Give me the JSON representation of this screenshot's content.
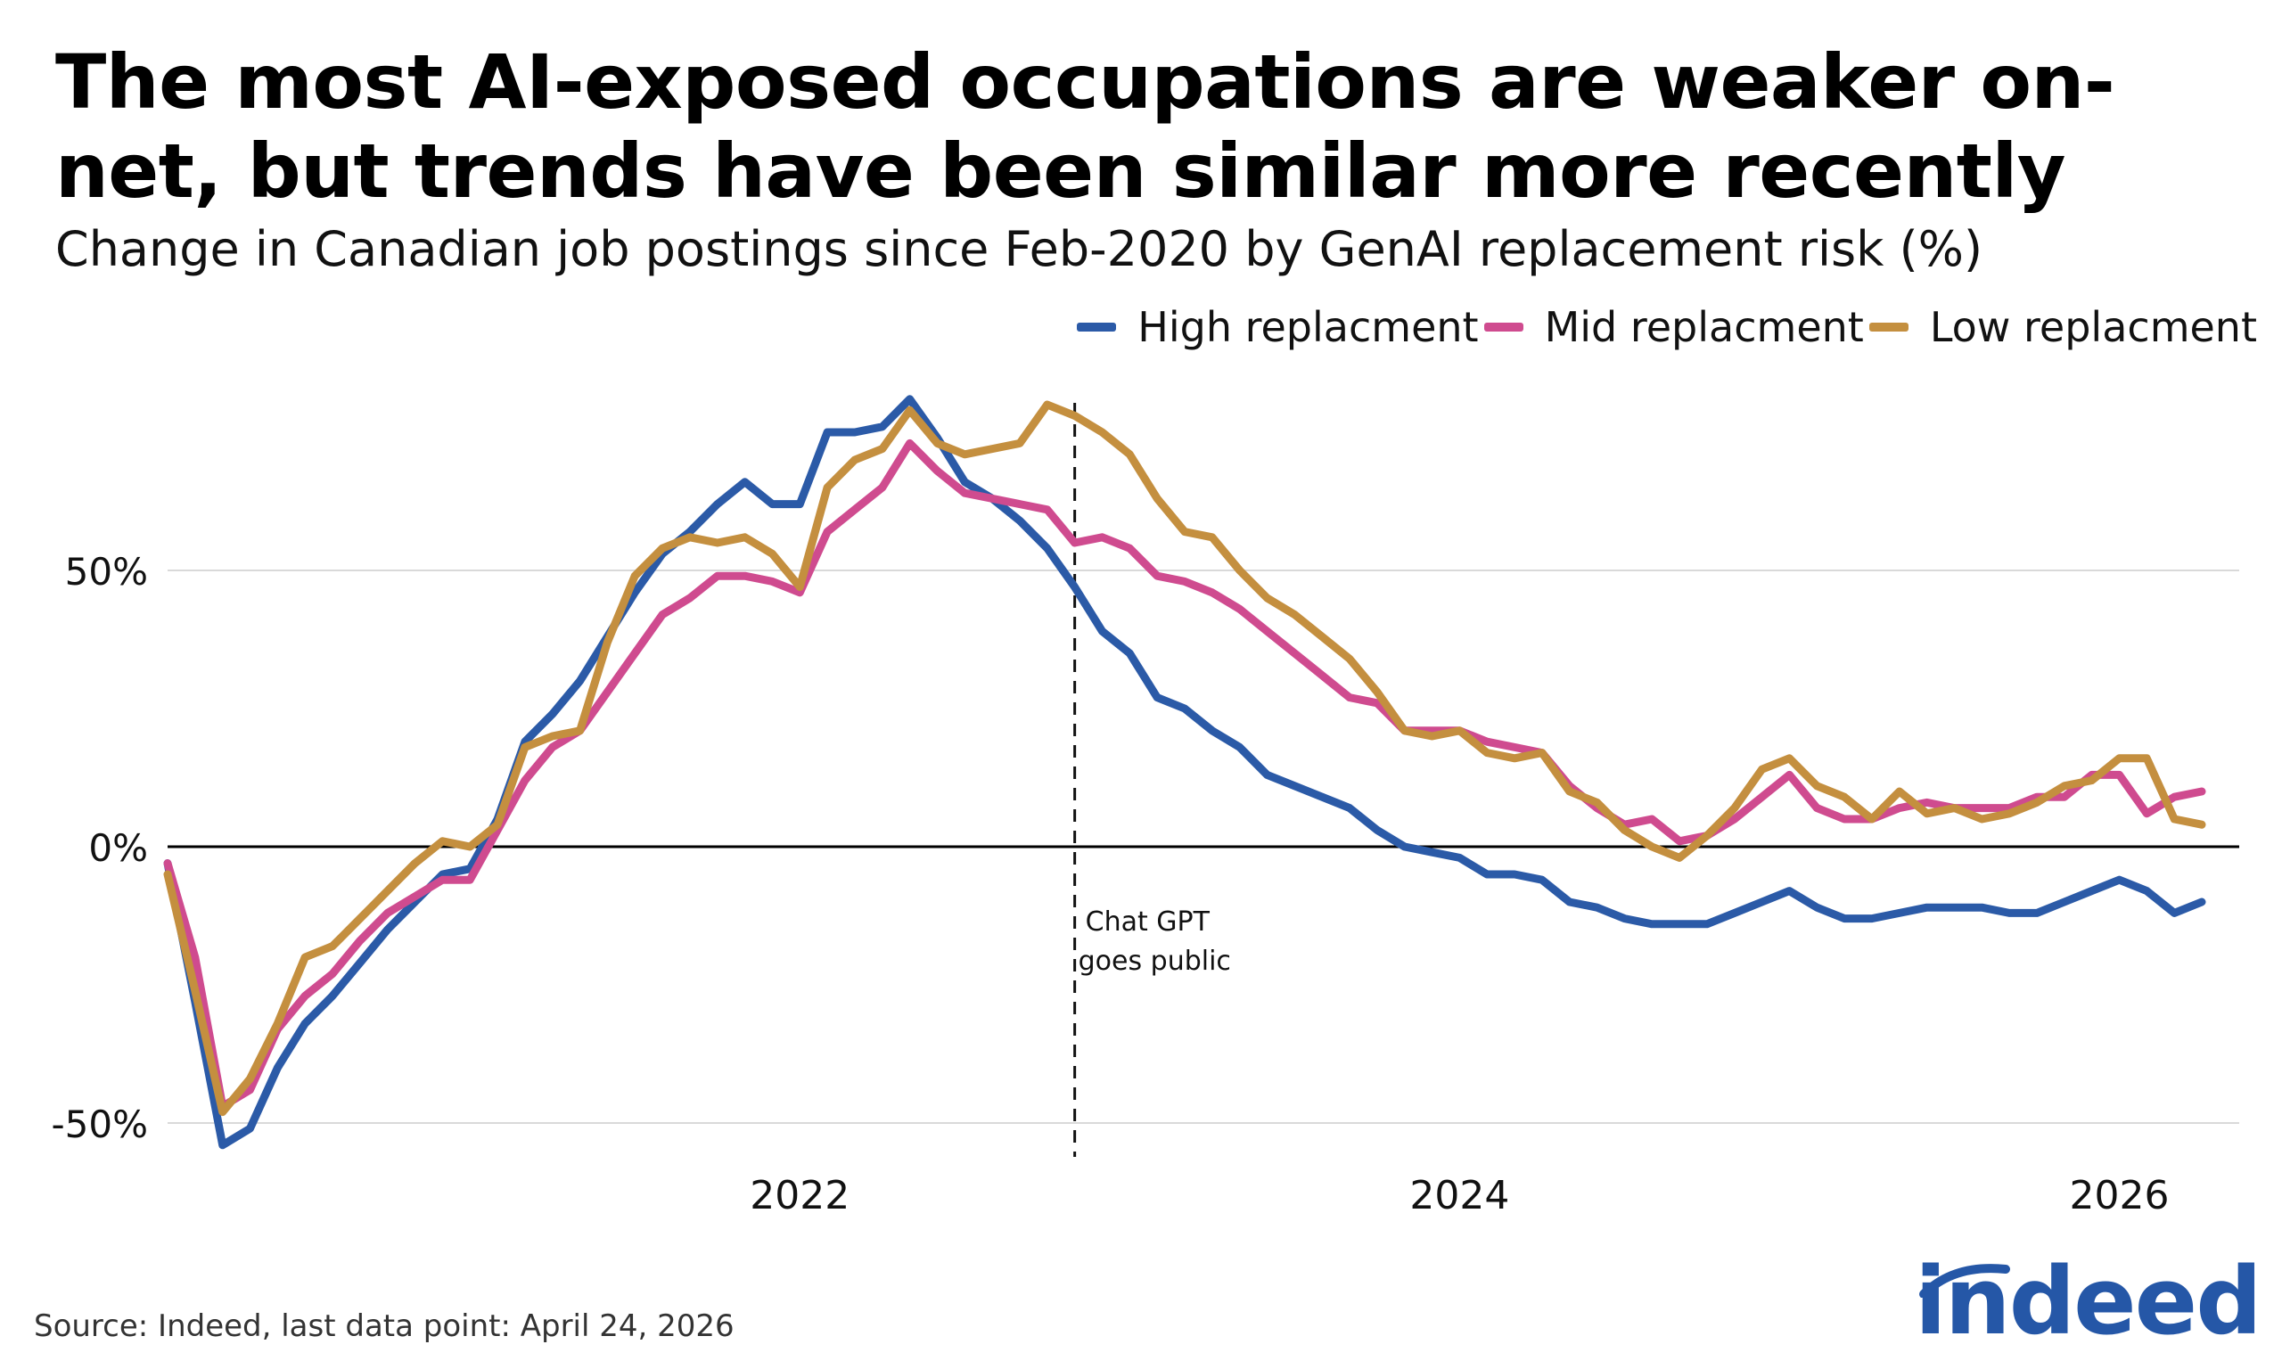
{
  "title": "The most AI-exposed occupations are weaker on-net, but trends have been similar more recently",
  "subtitle": "Change in Canadian job postings since Feb-2020 by GenAI replacement risk (%)",
  "source": "Source: Indeed, last data point: April 24, 2026",
  "logo_text": "indeed",
  "colors": {
    "high": "#2b5aa7",
    "mid": "#cf4b8f",
    "low": "#c48f3f",
    "logo": "#2557a7"
  },
  "chart_data": {
    "type": "line",
    "x_unit": "months since Feb-2020",
    "ylim": [
      -55,
      82
    ],
    "y_ticks": [
      -50,
      0,
      50
    ],
    "y_tick_labels": [
      "-50%",
      "0%",
      "50%"
    ],
    "x_ticks": [
      {
        "x": 23,
        "label": "2022"
      },
      {
        "x": 47,
        "label": "2024"
      },
      {
        "x": 71,
        "label": "2026"
      }
    ],
    "grid": true,
    "legend_position": "top-right",
    "annotation": {
      "x": 33,
      "lines": [
        "Chat GPT",
        "goes public"
      ]
    },
    "x": [
      0,
      1,
      2,
      3,
      4,
      5,
      6,
      7,
      8,
      9,
      10,
      11,
      12,
      13,
      14,
      15,
      16,
      17,
      18,
      19,
      20,
      21,
      22,
      23,
      24,
      25,
      26,
      27,
      28,
      29,
      30,
      31,
      32,
      33,
      34,
      35,
      36,
      37,
      38,
      39,
      40,
      41,
      42,
      43,
      44,
      45,
      46,
      47,
      48,
      49,
      50,
      51,
      52,
      53,
      54,
      55,
      56,
      57,
      58,
      59,
      60,
      61,
      62,
      63,
      64,
      65,
      66,
      67,
      68,
      69,
      70,
      71,
      72,
      73,
      74
    ],
    "series": [
      {
        "key": "high",
        "name": "High replacment",
        "values": [
          -3,
          -28,
          -54,
          -51,
          -40,
          -32,
          -27,
          -21,
          -15,
          -10,
          -5,
          -4,
          5,
          19,
          24,
          30,
          38,
          46,
          53,
          57,
          62,
          66,
          62,
          62,
          75,
          75,
          76,
          81,
          74,
          66,
          63,
          59,
          54,
          47,
          39,
          35,
          27,
          25,
          21,
          18,
          13,
          11,
          9,
          7,
          3,
          0,
          -1,
          -2,
          -5,
          -5,
          -6,
          -10,
          -11,
          -13,
          -14,
          -14,
          -14,
          -12,
          -10,
          -8,
          -11,
          -13,
          -13,
          -12,
          -11,
          -11,
          -11,
          -12,
          -12,
          -10,
          -8,
          -6,
          -8,
          -12,
          -10
        ]
      },
      {
        "key": "mid",
        "name": "Mid replacment",
        "values": [
          -3,
          -20,
          -47,
          -44,
          -33,
          -27,
          -23,
          -17,
          -12,
          -9,
          -6,
          -6,
          3,
          12,
          18,
          21,
          28,
          35,
          42,
          45,
          49,
          49,
          48,
          46,
          57,
          61,
          65,
          73,
          68,
          64,
          63,
          62,
          61,
          55,
          56,
          54,
          49,
          48,
          46,
          43,
          39,
          35,
          31,
          27,
          26,
          21,
          21,
          21,
          19,
          18,
          17,
          11,
          7,
          4,
          5,
          1,
          2,
          5,
          9,
          13,
          7,
          5,
          5,
          7,
          8,
          7,
          7,
          7,
          9,
          9,
          13,
          13,
          6,
          9,
          10
        ]
      },
      {
        "key": "low",
        "name": "Low replacment",
        "values": [
          -5,
          -26,
          -48,
          -42,
          -32,
          -20,
          -18,
          -13,
          -8,
          -3,
          1,
          0,
          4,
          18,
          20,
          21,
          37,
          49,
          54,
          56,
          55,
          56,
          53,
          47,
          65,
          70,
          72,
          79,
          73,
          71,
          72,
          73,
          80,
          78,
          75,
          71,
          63,
          57,
          56,
          50,
          45,
          42,
          38,
          34,
          28,
          21,
          20,
          21,
          17,
          16,
          17,
          10,
          8,
          3,
          0,
          -2,
          2,
          7,
          14,
          16,
          11,
          9,
          5,
          10,
          6,
          7,
          5,
          6,
          8,
          11,
          12,
          16,
          16,
          5,
          4
        ]
      }
    ]
  }
}
